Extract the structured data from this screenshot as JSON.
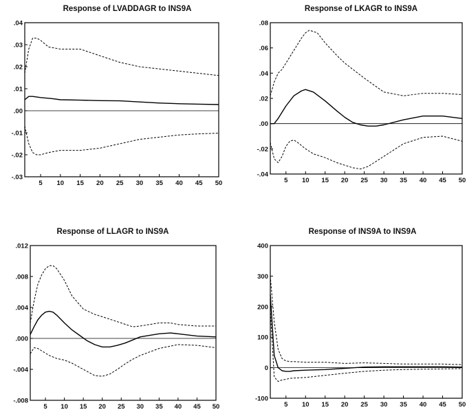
{
  "chart_data": [
    {
      "type": "line",
      "title": "Response of LVADDAGR to INS9A",
      "xlabel": "",
      "ylabel": "",
      "xlim": [
        1,
        50
      ],
      "ylim": [
        -0.03,
        0.04
      ],
      "x_ticks": [
        5,
        10,
        15,
        20,
        25,
        30,
        35,
        40,
        45,
        50
      ],
      "y_ticks": [
        {
          "value": -0.03,
          "label": "-.03"
        },
        {
          "value": -0.02,
          "label": "-.02"
        },
        {
          "value": -0.01,
          "label": "-.01"
        },
        {
          "value": 0.0,
          "label": ".00"
        },
        {
          "value": 0.01,
          "label": ".01"
        },
        {
          "value": 0.02,
          "label": ".02"
        },
        {
          "value": 0.03,
          "label": ".03"
        },
        {
          "value": 0.04,
          "label": ".04"
        }
      ],
      "zero_line": true,
      "series": [
        {
          "style": "solid",
          "x": [
            1,
            2,
            3,
            5,
            8,
            10,
            15,
            20,
            25,
            30,
            35,
            40,
            45,
            50
          ],
          "y": [
            0.005,
            0.0065,
            0.0065,
            0.006,
            0.0055,
            0.005,
            0.0048,
            0.0046,
            0.0045,
            0.004,
            0.0035,
            0.0032,
            0.003,
            0.0028
          ]
        },
        {
          "style": "dashed",
          "x": [
            1,
            2,
            3,
            4,
            5,
            7,
            10,
            15,
            20,
            25,
            30,
            35,
            40,
            45,
            50
          ],
          "y": [
            0.017,
            0.028,
            0.033,
            0.033,
            0.032,
            0.029,
            0.028,
            0.028,
            0.025,
            0.022,
            0.02,
            0.019,
            0.018,
            0.017,
            0.016
          ]
        },
        {
          "style": "dashed",
          "x": [
            1,
            2,
            3,
            4,
            5,
            7,
            10,
            15,
            20,
            25,
            30,
            35,
            40,
            45,
            50
          ],
          "y": [
            -0.007,
            -0.015,
            -0.019,
            -0.02,
            -0.02,
            -0.019,
            -0.018,
            -0.018,
            -0.017,
            -0.015,
            -0.013,
            -0.012,
            -0.011,
            -0.0105,
            -0.0102
          ]
        }
      ]
    },
    {
      "type": "line",
      "title": "Response of LKAGR to INS9A",
      "xlabel": "",
      "ylabel": "",
      "xlim": [
        1,
        50
      ],
      "ylim": [
        -0.04,
        0.08
      ],
      "x_ticks": [
        5,
        10,
        15,
        20,
        25,
        30,
        35,
        40,
        45,
        50
      ],
      "y_ticks": [
        {
          "value": -0.04,
          "label": "-.04"
        },
        {
          "value": -0.02,
          "label": "-.02"
        },
        {
          "value": 0.0,
          "label": ".00"
        },
        {
          "value": 0.02,
          "label": ".02"
        },
        {
          "value": 0.04,
          "label": ".04"
        },
        {
          "value": 0.06,
          "label": ".06"
        },
        {
          "value": 0.08,
          "label": ".08"
        }
      ],
      "zero_line": true,
      "series": [
        {
          "style": "solid",
          "x": [
            1,
            2,
            3,
            5,
            7,
            9,
            10,
            12,
            15,
            18,
            20,
            22,
            24,
            26,
            28,
            30,
            35,
            40,
            45,
            50
          ],
          "y": [
            0.0,
            0.0,
            0.004,
            0.014,
            0.022,
            0.026,
            0.027,
            0.025,
            0.018,
            0.01,
            0.005,
            0.001,
            -0.001,
            -0.002,
            -0.002,
            -0.001,
            0.003,
            0.006,
            0.006,
            0.004
          ]
        },
        {
          "style": "dashed",
          "x": [
            1,
            2,
            3,
            4,
            5,
            7,
            9,
            10,
            11,
            13,
            15,
            18,
            20,
            25,
            30,
            35,
            40,
            45,
            50
          ],
          "y": [
            0.022,
            0.033,
            0.04,
            0.043,
            0.048,
            0.058,
            0.068,
            0.072,
            0.074,
            0.072,
            0.064,
            0.054,
            0.048,
            0.036,
            0.025,
            0.022,
            0.024,
            0.024,
            0.023
          ]
        },
        {
          "style": "dashed",
          "x": [
            1,
            2,
            3,
            4,
            5,
            6,
            7,
            8,
            10,
            12,
            15,
            18,
            20,
            22,
            24,
            26,
            28,
            30,
            35,
            40,
            45,
            50
          ],
          "y": [
            -0.015,
            -0.028,
            -0.031,
            -0.026,
            -0.018,
            -0.014,
            -0.013,
            -0.015,
            -0.02,
            -0.024,
            -0.027,
            -0.031,
            -0.033,
            -0.035,
            -0.036,
            -0.034,
            -0.03,
            -0.026,
            -0.016,
            -0.011,
            -0.01,
            -0.014
          ]
        }
      ]
    },
    {
      "type": "line",
      "title": "Response of LLAGR to INS9A",
      "xlabel": "",
      "ylabel": "",
      "xlim": [
        1,
        50
      ],
      "ylim": [
        -0.008,
        0.012
      ],
      "x_ticks": [
        5,
        10,
        15,
        20,
        25,
        30,
        35,
        40,
        45,
        50
      ],
      "y_ticks": [
        {
          "value": -0.008,
          "label": "-.008"
        },
        {
          "value": -0.004,
          "label": "-.004"
        },
        {
          "value": 0.0,
          "label": ".000"
        },
        {
          "value": 0.004,
          "label": ".004"
        },
        {
          "value": 0.008,
          "label": ".008"
        },
        {
          "value": 0.012,
          "label": ".012"
        }
      ],
      "zero_line": true,
      "series": [
        {
          "style": "solid",
          "x": [
            1,
            2,
            3,
            4,
            5,
            6,
            7,
            8,
            10,
            12,
            14,
            16,
            18,
            20,
            22,
            24,
            26,
            28,
            30,
            35,
            38,
            40,
            45,
            50
          ],
          "y": [
            0.0005,
            0.0015,
            0.0024,
            0.003,
            0.0034,
            0.0035,
            0.0034,
            0.003,
            0.002,
            0.0011,
            0.0004,
            -0.0003,
            -0.0008,
            -0.0011,
            -0.0011,
            -0.0009,
            -0.0006,
            -0.0002,
            0.0002,
            0.0006,
            0.0007,
            0.0006,
            0.0003,
            0.0002
          ]
        },
        {
          "style": "dashed",
          "x": [
            1,
            2,
            3,
            4,
            5,
            6,
            7,
            8,
            10,
            12,
            15,
            18,
            20,
            25,
            28,
            30,
            35,
            38,
            40,
            45,
            50
          ],
          "y": [
            0.002,
            0.0048,
            0.007,
            0.0082,
            0.009,
            0.0094,
            0.0094,
            0.009,
            0.0075,
            0.0055,
            0.0038,
            0.0031,
            0.0028,
            0.002,
            0.0015,
            0.0016,
            0.002,
            0.002,
            0.0018,
            0.0016,
            0.0016
          ]
        },
        {
          "style": "dashed",
          "x": [
            1,
            2,
            3,
            4,
            5,
            6,
            7,
            8,
            10,
            12,
            15,
            18,
            20,
            22,
            24,
            26,
            28,
            30,
            35,
            40,
            45,
            50
          ],
          "y": [
            -0.002,
            -0.0012,
            -0.0013,
            -0.0016,
            -0.0019,
            -0.0022,
            -0.0024,
            -0.0026,
            -0.0028,
            -0.0032,
            -0.004,
            -0.0048,
            -0.0049,
            -0.0046,
            -0.004,
            -0.0033,
            -0.0027,
            -0.0022,
            -0.0013,
            -0.0008,
            -0.0009,
            -0.0012
          ]
        }
      ]
    },
    {
      "type": "line",
      "title": "Response of INS9A to INS9A",
      "xlabel": "",
      "ylabel": "",
      "xlim": [
        1,
        50
      ],
      "ylim": [
        -100,
        400
      ],
      "x_ticks": [
        5,
        10,
        15,
        20,
        25,
        30,
        35,
        40,
        45,
        50
      ],
      "y_ticks": [
        {
          "value": -100,
          "label": "-100"
        },
        {
          "value": 0,
          "label": "0"
        },
        {
          "value": 100,
          "label": "100"
        },
        {
          "value": 200,
          "label": "200"
        },
        {
          "value": 300,
          "label": "300"
        },
        {
          "value": 400,
          "label": "400"
        }
      ],
      "zero_line": true,
      "series": [
        {
          "style": "solid",
          "x": [
            1,
            2,
            3,
            4,
            5,
            6,
            7,
            10,
            15,
            20,
            25,
            30,
            35,
            40,
            45,
            50
          ],
          "y": [
            240,
            40,
            0,
            -10,
            -12,
            -12,
            -10,
            -8,
            -6,
            -2,
            2,
            3,
            3,
            3,
            3,
            2
          ]
        },
        {
          "style": "dashed",
          "x": [
            1,
            2,
            3,
            4,
            5,
            6,
            7,
            10,
            15,
            20,
            25,
            30,
            35,
            40,
            45,
            50
          ],
          "y": [
            300,
            150,
            60,
            30,
            22,
            20,
            20,
            18,
            18,
            14,
            16,
            14,
            12,
            12,
            12,
            10
          ]
        },
        {
          "style": "dashed",
          "x": [
            1,
            2,
            3,
            4,
            5,
            6,
            7,
            10,
            15,
            20,
            25,
            30,
            35,
            40,
            45,
            50
          ],
          "y": [
            190,
            -30,
            -45,
            -40,
            -38,
            -35,
            -34,
            -32,
            -25,
            -18,
            -12,
            -8,
            -6,
            -5,
            -4,
            -3
          ]
        }
      ]
    }
  ]
}
